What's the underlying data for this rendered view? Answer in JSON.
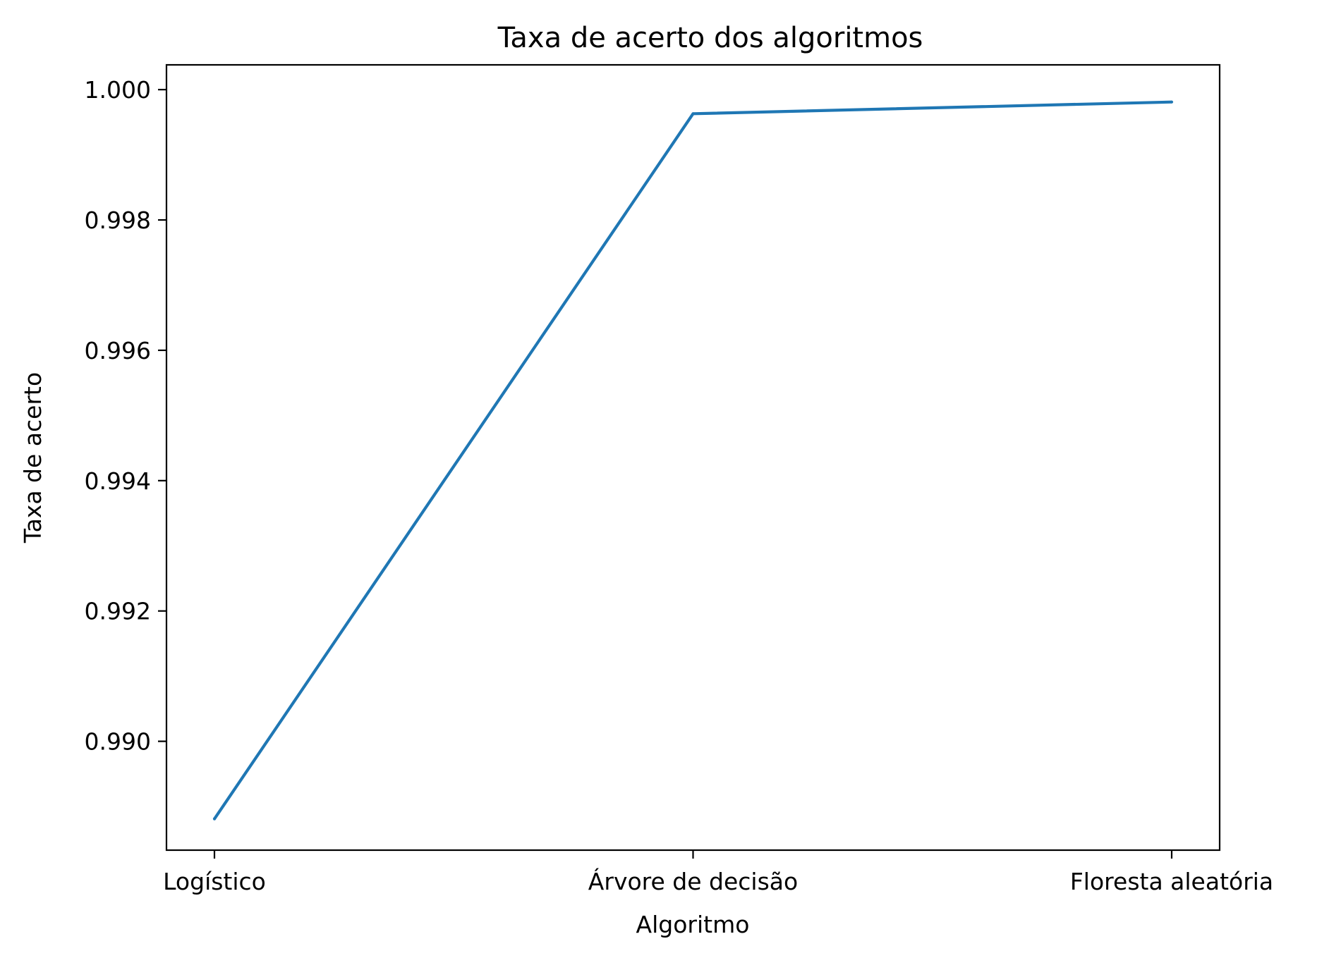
{
  "chart_data": {
    "type": "line",
    "title": "Taxa de acerto dos algoritmos",
    "xlabel": "Algoritmo",
    "ylabel": "Taxa de acerto",
    "categories": [
      "Logístico",
      "Árvore de decisão",
      "Floresta aleatória"
    ],
    "series": [
      {
        "values": [
          0.98881,
          0.99963,
          0.99981
        ],
        "color": "#1f77b4"
      }
    ],
    "ylim": [
      0.98833,
      1.00038
    ],
    "yticks": [
      0.99,
      0.992,
      0.994,
      0.996,
      0.998,
      1.0
    ],
    "ytick_labels": [
      "0.990",
      "0.992",
      "0.994",
      "0.996",
      "0.998",
      "1.000"
    ],
    "grid": false,
    "legend": "none"
  }
}
